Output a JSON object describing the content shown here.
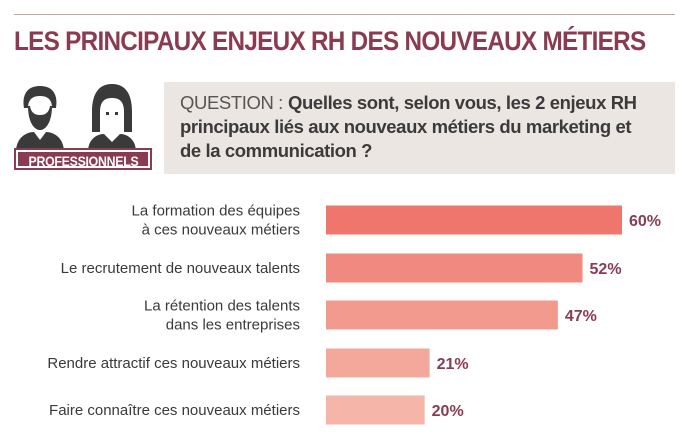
{
  "header": {
    "title": "LES PRINCIPAUX ENJEUX RH DES NOUVEAUX MÉTIERS"
  },
  "persona": {
    "badge": "PROFESSIONNELS",
    "icon": "two-people-icon"
  },
  "question": {
    "prefix": "QUESTION :",
    "text": "Quelles sont, selon vous, les 2 enjeux RH principaux liés aux nouveaux métiers du marketing et de la communication ?"
  },
  "chart_data": {
    "type": "bar",
    "orientation": "horizontal",
    "categories": [
      [
        "La formation des équipes",
        "à ces nouveaux métiers"
      ],
      [
        "Le recrutement de nouveaux talents"
      ],
      [
        "La rétention des talents",
        "dans les entreprises"
      ],
      [
        "Rendre attractif ces nouveaux métiers"
      ],
      [
        "Faire connaître ces nouveaux métiers"
      ]
    ],
    "values": [
      60,
      52,
      47,
      21,
      20
    ],
    "value_labels": [
      "60%",
      "52%",
      "47%",
      "21%",
      "20%"
    ],
    "unit": "%",
    "xlim": [
      0,
      60
    ],
    "grid": false,
    "colors": [
      "#ee766d",
      "#f08a80",
      "#f29a8e",
      "#f4a89c",
      "#f6b5a9"
    ]
  }
}
